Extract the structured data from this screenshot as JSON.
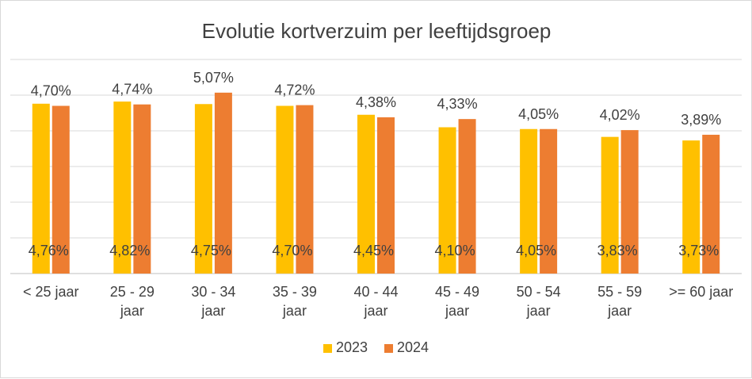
{
  "chart_data": {
    "type": "bar",
    "title": "Evolutie kortverzuim per leeftijdsgroep",
    "xlabel": "",
    "ylabel": "",
    "categories": [
      [
        "< 25 jaar"
      ],
      [
        "25 - 29",
        "jaar"
      ],
      [
        "30 - 34",
        "jaar"
      ],
      [
        "35 - 39",
        "jaar"
      ],
      [
        "40 - 44",
        "jaar"
      ],
      [
        "45 - 49",
        "jaar"
      ],
      [
        "50 - 54",
        "jaar"
      ],
      [
        "55 - 59",
        "jaar"
      ],
      [
        ">= 60 jaar"
      ]
    ],
    "series": [
      {
        "name": "2023",
        "color": "#FFC000",
        "values": [
          4.76,
          4.82,
          4.75,
          4.7,
          4.45,
          4.1,
          4.05,
          3.83,
          3.73
        ],
        "labels": [
          "4,76%",
          "4,82%",
          "4,75%",
          "4,70%",
          "4,45%",
          "4,10%",
          "4,05%",
          "3,83%",
          "3,73%"
        ]
      },
      {
        "name": "2024",
        "color": "#ED7D31",
        "values": [
          4.7,
          4.74,
          5.07,
          4.72,
          4.38,
          4.33,
          4.05,
          4.02,
          3.89
        ],
        "labels": [
          "4,70%",
          "4,74%",
          "5,07%",
          "4,72%",
          "4,38%",
          "4,33%",
          "4,05%",
          "4,02%",
          "3,89%"
        ]
      }
    ],
    "ylim": [
      0,
      6
    ],
    "grid": true,
    "legend": "bottom"
  }
}
